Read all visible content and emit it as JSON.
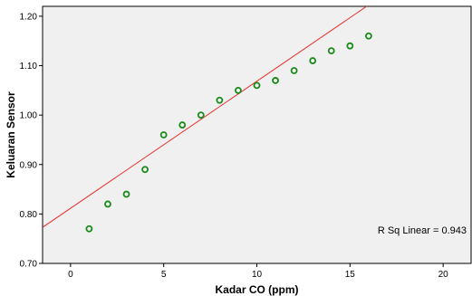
{
  "chart_data": {
    "type": "scatter",
    "xlabel": "Kadar CO (ppm)",
    "ylabel": "Keluaran Sensor",
    "xlim": [
      -1.5,
      21.5
    ],
    "ylim": [
      0.7,
      1.22
    ],
    "x_ticks": [
      0,
      5,
      10,
      15,
      20
    ],
    "y_ticks": [
      0.7,
      0.8,
      0.9,
      1.0,
      1.1,
      1.2
    ],
    "x_tick_labels": [
      "0",
      "5",
      "10",
      "15",
      "20"
    ],
    "y_tick_labels": [
      "0.70",
      "0.80",
      "0.90",
      "1.00",
      "1.10",
      "1.20"
    ],
    "grid": false,
    "points": [
      {
        "x": 1,
        "y": 0.77
      },
      {
        "x": 2,
        "y": 0.82
      },
      {
        "x": 3,
        "y": 0.84
      },
      {
        "x": 4,
        "y": 0.89
      },
      {
        "x": 5,
        "y": 0.96
      },
      {
        "x": 6,
        "y": 0.98
      },
      {
        "x": 7,
        "y": 1.0
      },
      {
        "x": 8,
        "y": 1.03
      },
      {
        "x": 9,
        "y": 1.05
      },
      {
        "x": 10,
        "y": 1.06
      },
      {
        "x": 11,
        "y": 1.07
      },
      {
        "x": 12,
        "y": 1.09
      },
      {
        "x": 13,
        "y": 1.11
      },
      {
        "x": 14,
        "y": 1.13
      },
      {
        "x": 15,
        "y": 1.14
      },
      {
        "x": 16,
        "y": 1.16
      }
    ],
    "fit_line": {
      "slope": 0.0257,
      "intercept": 0.8115
    },
    "annotation": "R Sq Linear = 0.943",
    "colors": {
      "plot_background": "#f0f0f0",
      "marker": "#1a8a1a",
      "fit_line": "#e8302f"
    }
  }
}
